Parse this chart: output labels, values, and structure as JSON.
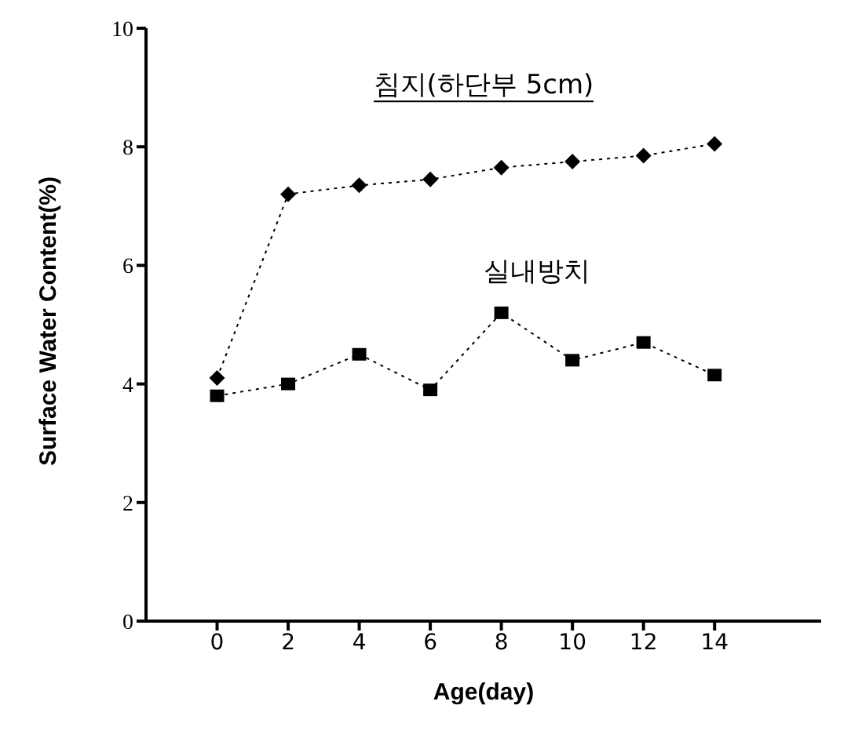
{
  "chart_data": {
    "type": "line",
    "xlabel": "Age(day)",
    "ylabel": "Surface Water Content(%)",
    "x": [
      0,
      2,
      4,
      6,
      8,
      10,
      12,
      14
    ],
    "series": [
      {
        "name": "침지(하단부 5cm)",
        "color": "#000000",
        "marker": "diamond",
        "values": [
          4.1,
          7.2,
          7.35,
          7.45,
          7.65,
          7.75,
          7.85,
          8.05
        ]
      },
      {
        "name": "실내방치",
        "color": "#000000",
        "marker": "square",
        "values": [
          3.8,
          4.0,
          4.5,
          3.9,
          5.2,
          4.4,
          4.7,
          4.15
        ]
      }
    ],
    "xlim": [
      -2,
      17
    ],
    "xticks": [
      0,
      2,
      4,
      6,
      8,
      10,
      12,
      14
    ],
    "ylim": [
      0,
      10
    ],
    "yticks": [
      0,
      2,
      4,
      6,
      8,
      10
    ],
    "grid": false,
    "legend": false,
    "line_style": "dotted"
  }
}
